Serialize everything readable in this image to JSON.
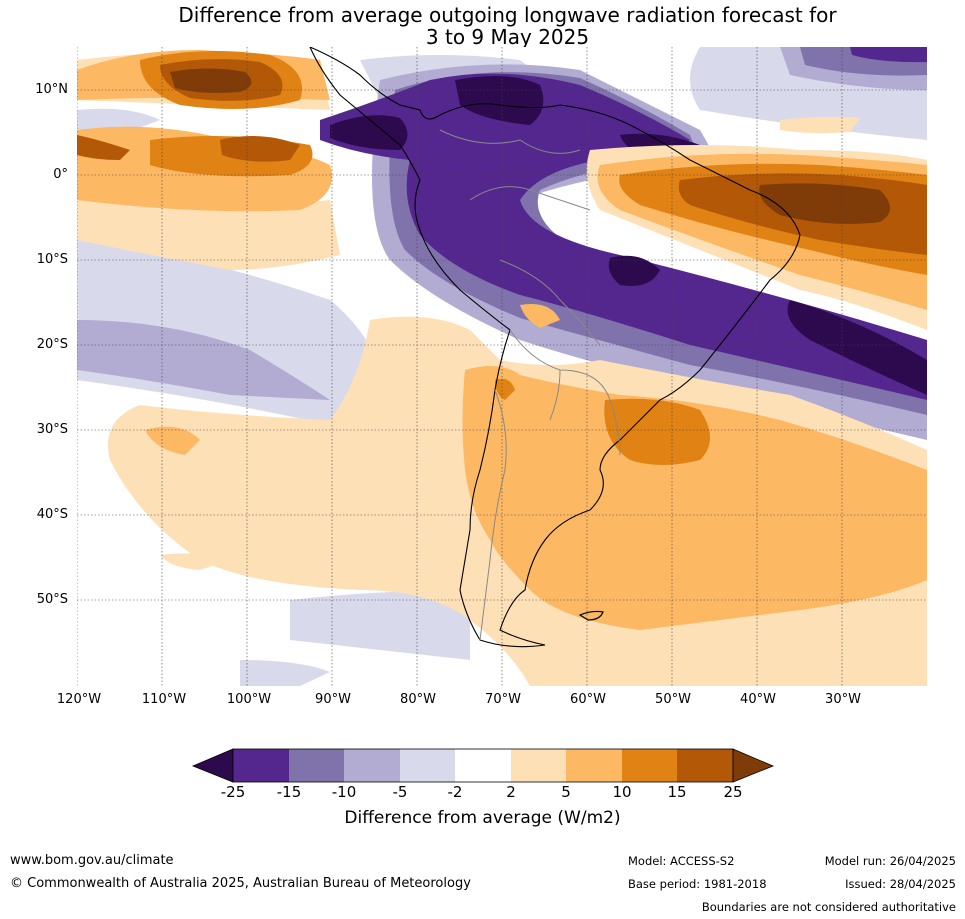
{
  "title": {
    "line1": "Difference from average outgoing longwave radiation forecast for",
    "line2": "3 to 9 May 2025"
  },
  "map": {
    "lat_labels": [
      "10°N",
      "0°",
      "10°S",
      "20°S",
      "30°S",
      "40°S",
      "50°S"
    ],
    "lon_labels": [
      "120°W",
      "110°W",
      "100°W",
      "90°W",
      "80°W",
      "70°W",
      "60°W",
      "50°W",
      "40°W",
      "30°W"
    ],
    "region": "South America and adjacent Pacific/Atlantic"
  },
  "colorbar": {
    "ticks": [
      "-25",
      "-15",
      "-10",
      "-5",
      "-2",
      "2",
      "5",
      "10",
      "15",
      "25"
    ],
    "colors": [
      "#2d0a4e",
      "#54278f",
      "#8073ac",
      "#b2abd2",
      "#d8daeb",
      "#ffffff",
      "#fee0b6",
      "#fdb863",
      "#e08214",
      "#b35806",
      "#7f3b08"
    ],
    "label": "Difference from average (W/m2)"
  },
  "footer": {
    "website": "www.bom.gov.au/climate",
    "copyright": "© Commonwealth of Australia 2025, Australian Bureau of Meteorology",
    "model": "Model: ACCESS-S2",
    "base_period": "Base period: 1981-2018",
    "model_run": "Model run: 26/04/2025",
    "issued": "Issued: 28/04/2025",
    "disclaimer": "Boundaries are not considered authoritative"
  }
}
